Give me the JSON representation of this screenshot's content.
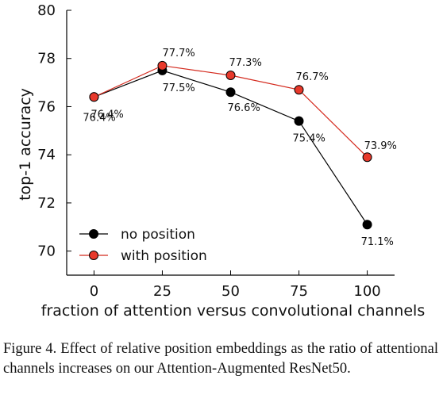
{
  "chart_data": {
    "type": "line",
    "x": [
      0,
      25,
      50,
      75,
      100
    ],
    "xlabel": "fraction of attention versus convolutional channels",
    "ylabel": "top-1 accuracy",
    "xlim": [
      -10,
      110
    ],
    "ylim": [
      69,
      80
    ],
    "xticks": [
      0,
      25,
      50,
      75,
      100
    ],
    "yticks": [
      70,
      72,
      74,
      76,
      78,
      80
    ],
    "grid": false,
    "legend_position": "lower-left",
    "series": [
      {
        "name": "no position",
        "values": [
          76.4,
          77.5,
          76.6,
          75.4,
          71.1
        ],
        "labels": [
          "76.4%",
          "77.5%",
          "76.6%",
          "75.4%",
          "71.1%"
        ],
        "color": "#000000",
        "line_color": "#000000"
      },
      {
        "name": "with position",
        "values": [
          76.4,
          77.7,
          77.3,
          76.7,
          73.9
        ],
        "labels": [
          "76.4%",
          "77.7%",
          "77.3%",
          "76.7%",
          "73.9%"
        ],
        "color": "#e8392b",
        "line_color": "#d42a1e"
      }
    ]
  },
  "caption": "Figure 4. Effect of relative position embeddings as the ratio of attentional channels increases on our Attention-Augmented ResNet50."
}
